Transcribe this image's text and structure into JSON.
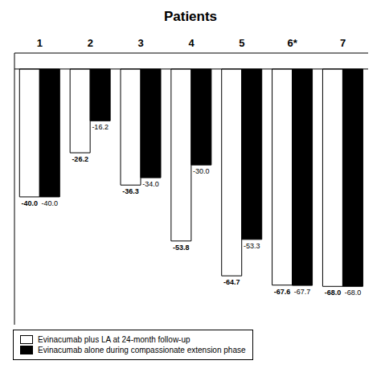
{
  "chart_data": {
    "type": "bar",
    "title": "Patients",
    "categories": [
      "1",
      "2",
      "3",
      "4",
      "5",
      "6*",
      "7"
    ],
    "series": [
      {
        "name": "Evinacumab plus LA at 24-month follow-up",
        "color": "#FFFFFF",
        "values": [
          -40.0,
          -26.2,
          -36.3,
          -53.8,
          -64.7,
          -67.6,
          -68.0
        ],
        "value_labels": [
          "-40.0",
          "-26.2",
          "-36.3",
          "-53.8",
          "-64.7",
          "-67.6",
          "-68.0"
        ]
      },
      {
        "name": "Evinacumab alone during compassionate extension phase",
        "color": "#000000",
        "values": [
          -40.0,
          -16.2,
          -34.0,
          -30.0,
          -53.3,
          -67.7,
          -68.0
        ],
        "value_labels": [
          "-40.0",
          "-16.2",
          "-34.0",
          "-30.0",
          "-53.3",
          "-67.7",
          "-68.0"
        ]
      }
    ],
    "ylim": [
      -80,
      5
    ],
    "legend": "lower left",
    "data_labels": true,
    "tick_labels": "x",
    "grid": false
  }
}
